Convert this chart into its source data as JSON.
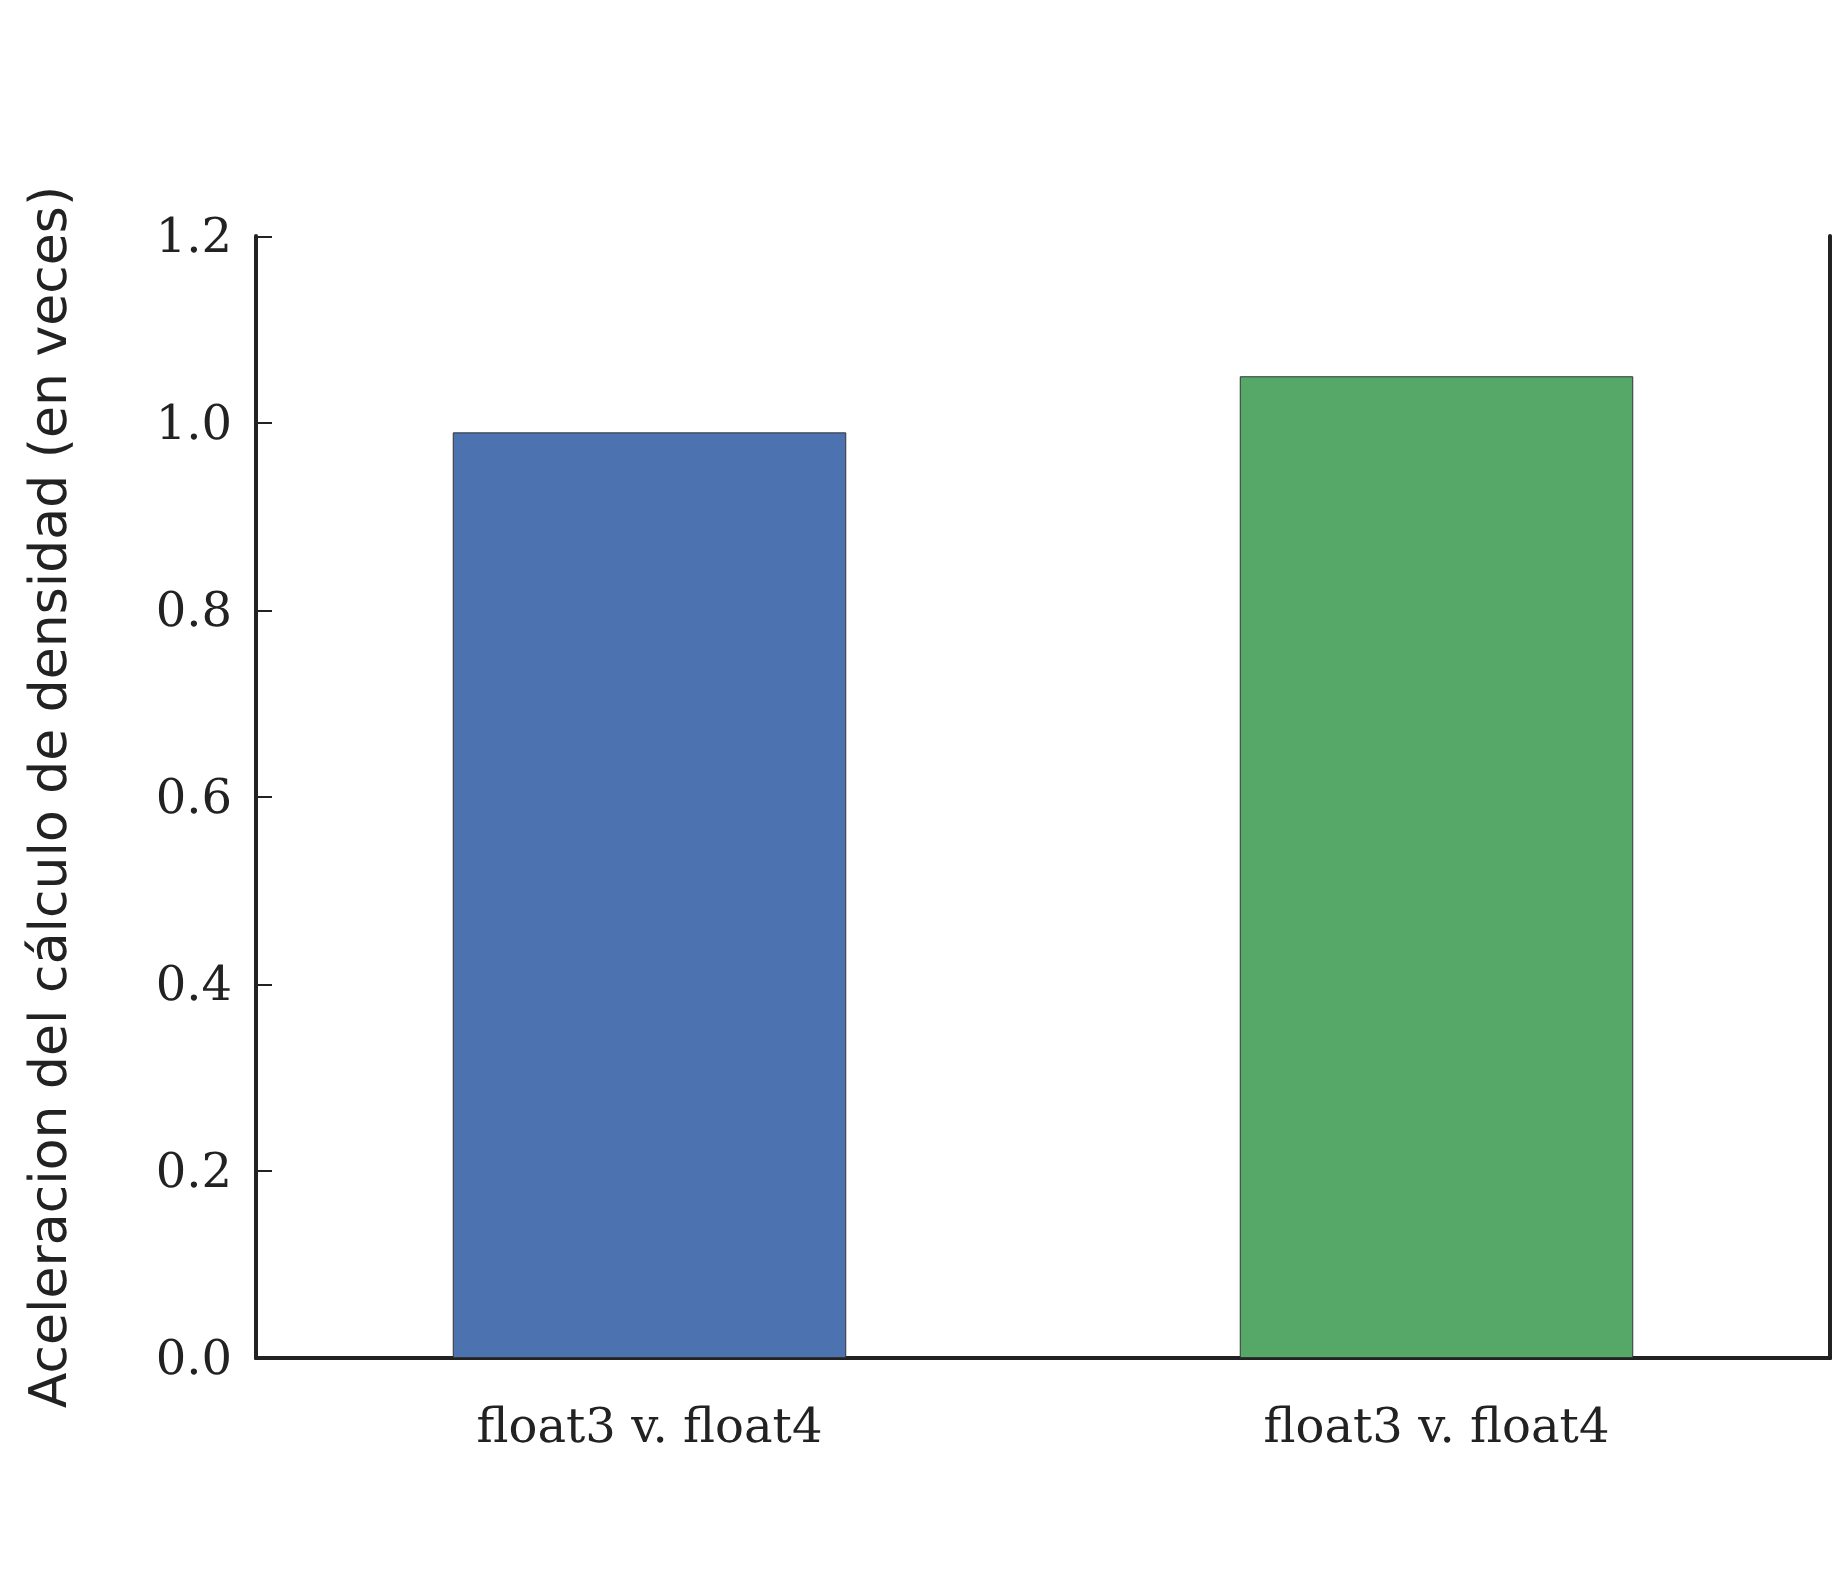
{
  "chart_data": {
    "type": "bar",
    "ylabel": "Aceleracion del cálculo de densidad (en veces)",
    "categories": [
      "float3 v. float4",
      "float3 v. float4"
    ],
    "values": [
      0.99,
      1.05
    ],
    "colors": [
      "#4c72b0",
      "#55a868"
    ],
    "ylim": [
      0,
      1.2
    ],
    "yticks": [
      {
        "value": 0,
        "label": "0.0"
      },
      0.2,
      0.4,
      0.6,
      0.8,
      {
        "value": 1,
        "label": "1.0"
      },
      1.2
    ]
  }
}
